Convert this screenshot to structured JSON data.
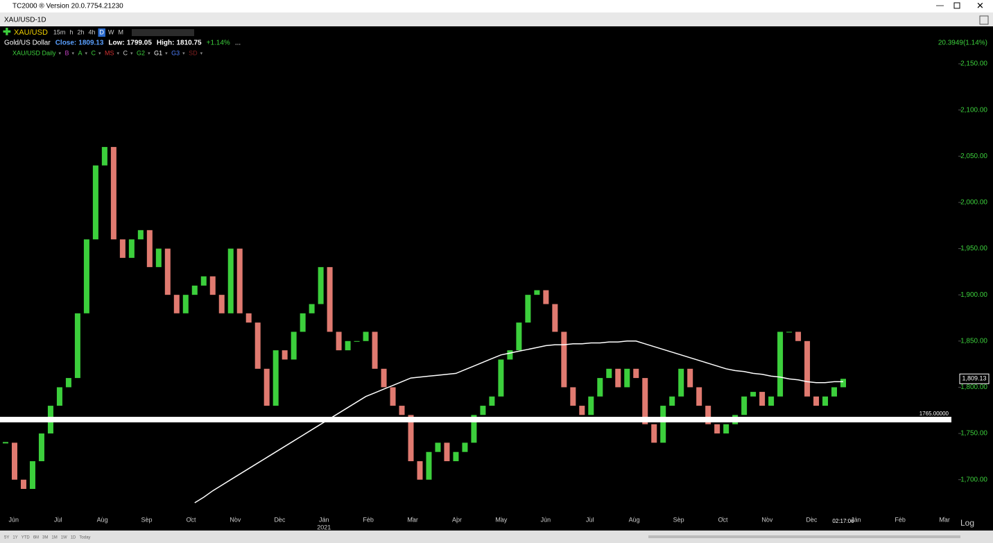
{
  "window": {
    "title": "TC2000 ® Version 20.0.7754.21230"
  },
  "tab": "XAU/USD-1D",
  "header": {
    "symbol": "XAU/USD",
    "timeframes": [
      "15m",
      "h",
      "2h",
      "4h",
      "D",
      "W",
      "M"
    ],
    "name": "Gold/US Dollar",
    "close_label": "Close:",
    "close": "1809.13",
    "low_label": "Low:",
    "low": "1799.05",
    "high_label": "High:",
    "high": "1810.75",
    "change": "+1.14%",
    "more": "...",
    "net_change": "20.3949(1.14%)"
  },
  "indicators": [
    "XAU/USD Daily",
    "B",
    "A",
    "C",
    "MS",
    "C",
    "G2",
    "G1",
    "G3",
    "SD"
  ],
  "chart_data": {
    "type": "candlestick",
    "up_color": "#3ccf3c",
    "down_color": "#e07a70",
    "closes": [
      1740,
      1700,
      1690,
      1720,
      1750,
      1780,
      1800,
      1810,
      1880,
      1960,
      2040,
      2060,
      1960,
      1940,
      1960,
      1970,
      1930,
      1950,
      1900,
      1880,
      1900,
      1910,
      1920,
      1900,
      1880,
      1950,
      1880,
      1870,
      1820,
      1780,
      1840,
      1830,
      1860,
      1880,
      1890,
      1930,
      1860,
      1840,
      1850,
      1850,
      1860,
      1820,
      1800,
      1780,
      1770,
      1720,
      1700,
      1730,
      1740,
      1720,
      1730,
      1740,
      1770,
      1780,
      1790,
      1830,
      1840,
      1870,
      1900,
      1905,
      1890,
      1860,
      1800,
      1780,
      1770,
      1790,
      1810,
      1820,
      1800,
      1820,
      1810,
      1760,
      1740,
      1780,
      1790,
      1820,
      1800,
      1780,
      1760,
      1750,
      1760,
      1770,
      1790,
      1795,
      1780,
      1790,
      1860,
      1860,
      1850,
      1790,
      1780,
      1790,
      1800,
      1809.13
    ],
    "series": [
      {
        "color": "#ffffff",
        "values": [
          null,
          null,
          null,
          null,
          null,
          null,
          null,
          null,
          null,
          null,
          null,
          null,
          null,
          null,
          null,
          null,
          null,
          null,
          null,
          null,
          null,
          1675,
          1681,
          1688,
          1694,
          1700,
          1706,
          1712,
          1718,
          1724,
          1730,
          1736,
          1742,
          1748,
          1754,
          1760,
          1766,
          1772,
          1778,
          1784,
          1790,
          1794,
          1798,
          1802,
          1806,
          1810,
          1811,
          1812,
          1813,
          1814,
          1815,
          1819,
          1823,
          1827,
          1831,
          1835,
          1837,
          1839,
          1841,
          1843,
          1845,
          1846,
          1846,
          1847,
          1847,
          1848,
          1848,
          1849,
          1849,
          1850,
          1850,
          1847,
          1844,
          1841,
          1838,
          1835,
          1832,
          1829,
          1826,
          1823,
          1820,
          1818,
          1817,
          1815,
          1814,
          1812,
          1811,
          1809,
          1808,
          1806,
          1805,
          1805,
          1806,
          1806
        ]
      }
    ],
    "ylim": [
      1660,
      2189
    ],
    "yticks": [
      {
        "value": 1700,
        "label": "1,700.00"
      },
      {
        "value": 1750,
        "label": "1,750.00"
      },
      {
        "value": 1800,
        "label": "1,800.00"
      },
      {
        "value": 1850,
        "label": "1,850.00"
      },
      {
        "value": 1900,
        "label": "1,900.00"
      },
      {
        "value": 1950,
        "label": "1,950.00"
      },
      {
        "value": 2000,
        "label": "2,000.00"
      },
      {
        "value": 2050,
        "label": "2,050.00"
      },
      {
        "value": 2100,
        "label": "2,100.00"
      },
      {
        "value": 2150,
        "label": "2,150.00"
      }
    ],
    "xlim": [
      -0.31,
      21.28
    ],
    "xticks": [
      {
        "value": 0,
        "label": "Jun"
      },
      {
        "value": 1,
        "label": "Jul"
      },
      {
        "value": 2,
        "label": "Aug"
      },
      {
        "value": 3,
        "label": "Sep"
      },
      {
        "value": 4,
        "label": "Oct"
      },
      {
        "value": 5,
        "label": "Nov"
      },
      {
        "value": 6,
        "label": "Dec"
      },
      {
        "value": 7,
        "label": "Jan"
      },
      {
        "value": 8,
        "label": "Feb"
      },
      {
        "value": 9,
        "label": "Mar"
      },
      {
        "value": 10,
        "label": "Apr"
      },
      {
        "value": 11,
        "label": "May"
      },
      {
        "value": 12,
        "label": "Jun"
      },
      {
        "value": 13,
        "label": "Jul"
      },
      {
        "value": 14,
        "label": "Aug"
      },
      {
        "value": 15,
        "label": "Sep"
      },
      {
        "value": 16,
        "label": "Oct"
      },
      {
        "value": 17,
        "label": "Nov"
      },
      {
        "value": 18,
        "label": "Dec"
      },
      {
        "value": 19,
        "label": "Jan"
      },
      {
        "value": 20,
        "label": "Feb"
      },
      {
        "value": 21,
        "label": "Mar"
      }
    ],
    "year_label": "2021",
    "level": {
      "value": 1765,
      "label": "1765.00000"
    },
    "last": {
      "value": 1809.13,
      "label": "1,809.13"
    }
  },
  "footer": {
    "time": "02:17:06",
    "scale": "Log",
    "ranges": [
      "5Y",
      "1Y",
      "YTD",
      "6M",
      "3M",
      "1M",
      "1W",
      "1D",
      "Today"
    ]
  }
}
